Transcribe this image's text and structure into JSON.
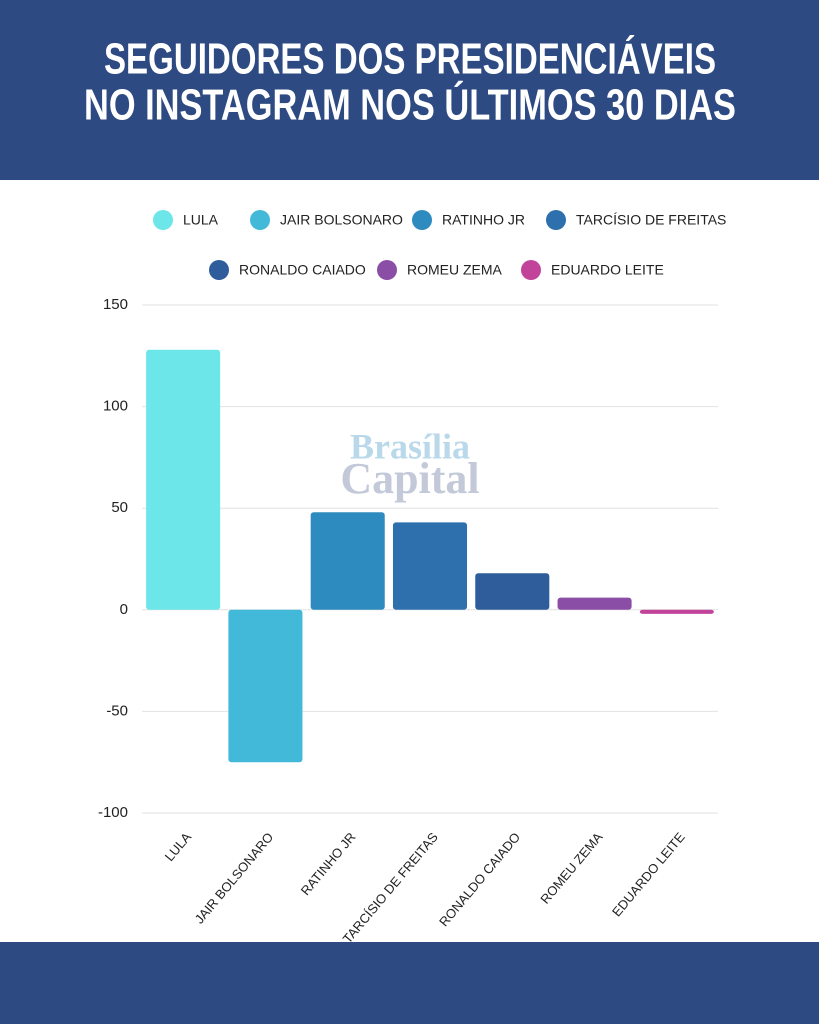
{
  "chart_data": {
    "type": "bar",
    "title": [
      "SEGUIDORES DOS PRESIDENCIÁVEIS",
      "NO INSTAGRAM NOS ÚLTIMOS 30 DIAS"
    ],
    "watermark": [
      "Brasília",
      "Capital"
    ],
    "categories": [
      "LULA",
      "JAIR BOLSONARO",
      "RATINHO JR",
      "TARCÍSIO DE FREITAS",
      "RONALDO CAIADO",
      "ROMEU ZEMA",
      "EDUARDO LEITE"
    ],
    "values": [
      128,
      -75,
      48,
      43,
      18,
      6,
      -2
    ],
    "colors": [
      "#6de6ea",
      "#42b9d8",
      "#2e8bbf",
      "#2e70ae",
      "#2f5c9a",
      "#8a4ea6",
      "#c2449a"
    ],
    "ylim": [
      -100,
      150
    ],
    "yticks": [
      -100,
      -50,
      0,
      50,
      100,
      150
    ],
    "grid": true
  }
}
